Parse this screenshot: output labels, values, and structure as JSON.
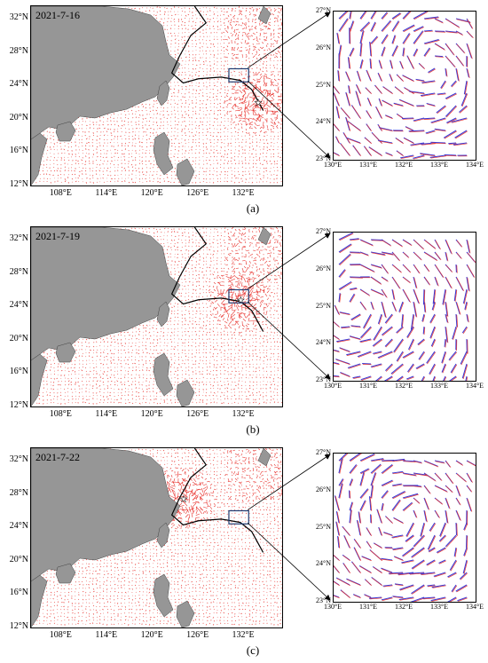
{
  "panels": [
    {
      "date": "2021-7-16",
      "label": "(a)",
      "storm_lon": 133.8,
      "storm_lat": 22.0
    },
    {
      "date": "2021-7-19",
      "label": "(b)",
      "storm_lon": 131.5,
      "storm_lat": 24.8
    },
    {
      "date": "2021-7-22",
      "label": "(c)",
      "storm_lon": 124.0,
      "storm_lat": 27.5
    }
  ],
  "map_axes": {
    "lat_ticks": [
      "32°N",
      "28°N",
      "24°N",
      "20°N",
      "16°N",
      "12°N"
    ],
    "lon_ticks": [
      "108°E",
      "114°E",
      "120°E",
      "126°E",
      "132°E"
    ],
    "lon_range": [
      104,
      137
    ],
    "lat_range": [
      12,
      33.5
    ]
  },
  "zoom_axes": {
    "lat_ticks": [
      "27°N",
      "26°N",
      "25°N",
      "24°N",
      "23°N"
    ],
    "lon_ticks": [
      "130°E",
      "131°E",
      "132°E",
      "133°E",
      "134°E"
    ],
    "lon_range": [
      130,
      134
    ],
    "lat_range": [
      23,
      27
    ]
  },
  "colors": {
    "land": "#969696",
    "vectors": "#e8332e",
    "vectors_alt": "#3b3bd6",
    "track": "#000000"
  }
}
